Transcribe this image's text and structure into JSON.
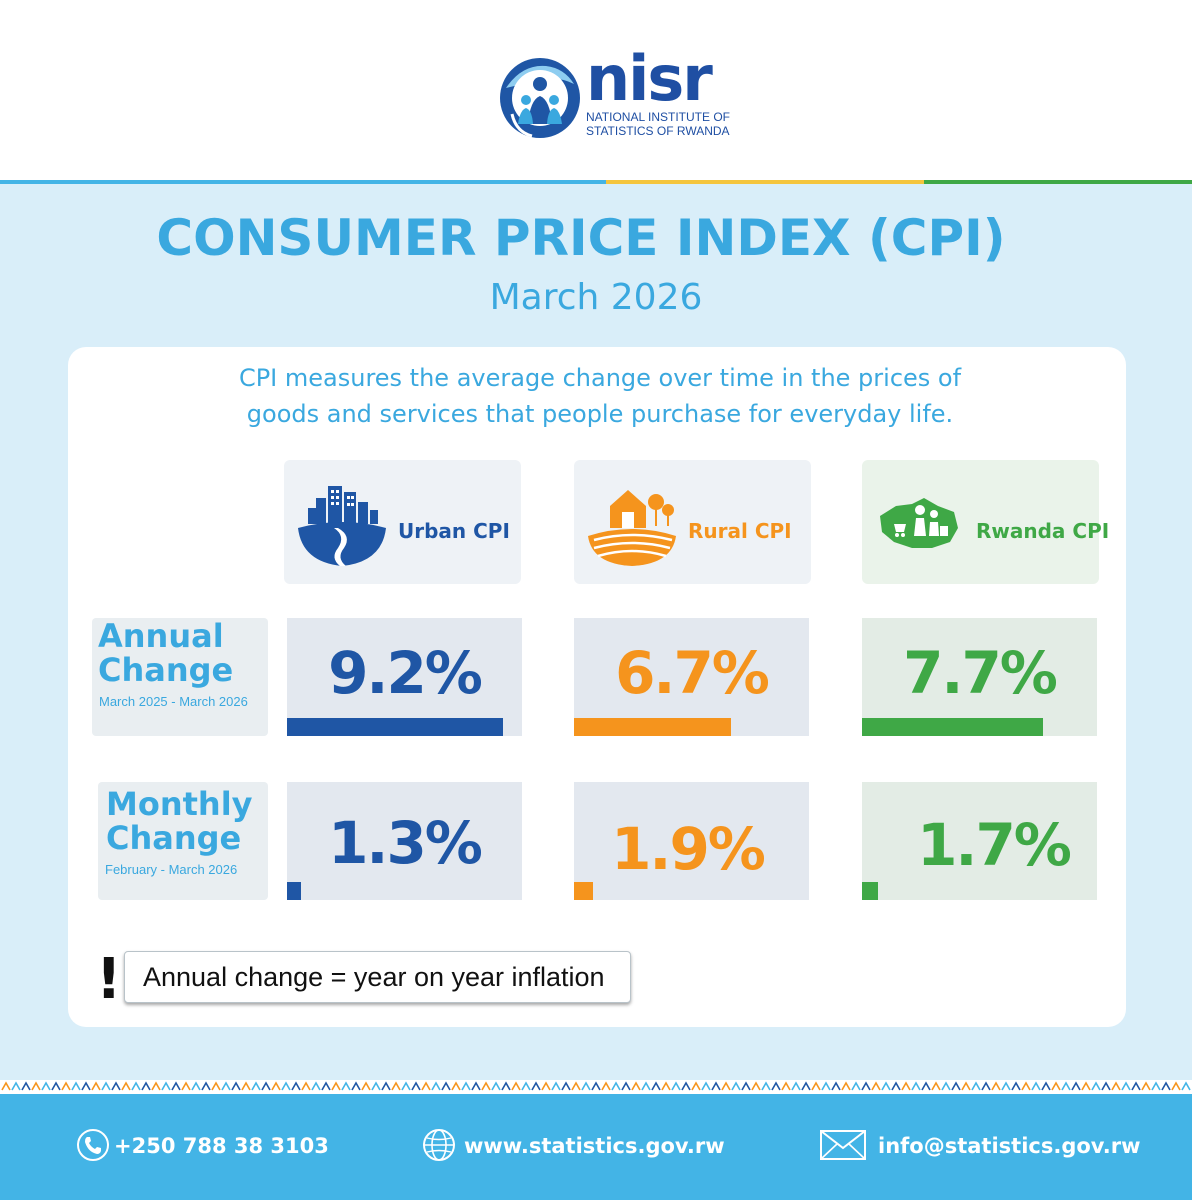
{
  "logo": {
    "word": "nisr",
    "sub_line1": "NATIONAL INSTITUTE OF",
    "sub_line2": "STATISTICS OF RWANDA"
  },
  "title": "CONSUMER PRICE INDEX (CPI)",
  "subtitle": "March 2026",
  "description_line1": "CPI measures the average change over time in the prices of",
  "description_line2": "goods and services that people purchase for everyday life.",
  "columns": [
    {
      "label": "Urban CPI",
      "icon": "city-road-icon",
      "color": "#1f56a5"
    },
    {
      "label": "Rural CPI",
      "icon": "house-field-icon",
      "color": "#f5941d"
    },
    {
      "label": "Rwanda CPI",
      "icon": "rwanda-map-family-icon",
      "color": "#3fa846"
    }
  ],
  "rows": [
    {
      "label_line1": "Annual",
      "label_line2": "Change",
      "period": "March 2025 - March 2026",
      "values": [
        "9.2%",
        "6.7%",
        "7.7%"
      ],
      "bar_fraction": [
        0.92,
        0.67,
        0.77
      ]
    },
    {
      "label_line1": "Monthly",
      "label_line2": "Change",
      "period": "February - March 2026",
      "values": [
        "1.3%",
        "1.9%",
        "1.7%"
      ],
      "bar_fraction": [
        0.06,
        0.08,
        0.07
      ]
    }
  ],
  "note": {
    "mark": "!",
    "text": "Annual change = year on year inflation"
  },
  "footer": {
    "phone": "+250 788 38 3103",
    "website": "www.statistics.gov.rw",
    "email": "info@statistics.gov.rw"
  },
  "colors": {
    "title": "#3aa8df",
    "panel": "#d9eef9",
    "footer": "#43b4e6",
    "urban": "#1f56a5",
    "rural": "#f5941d",
    "rwanda": "#3fa846"
  }
}
